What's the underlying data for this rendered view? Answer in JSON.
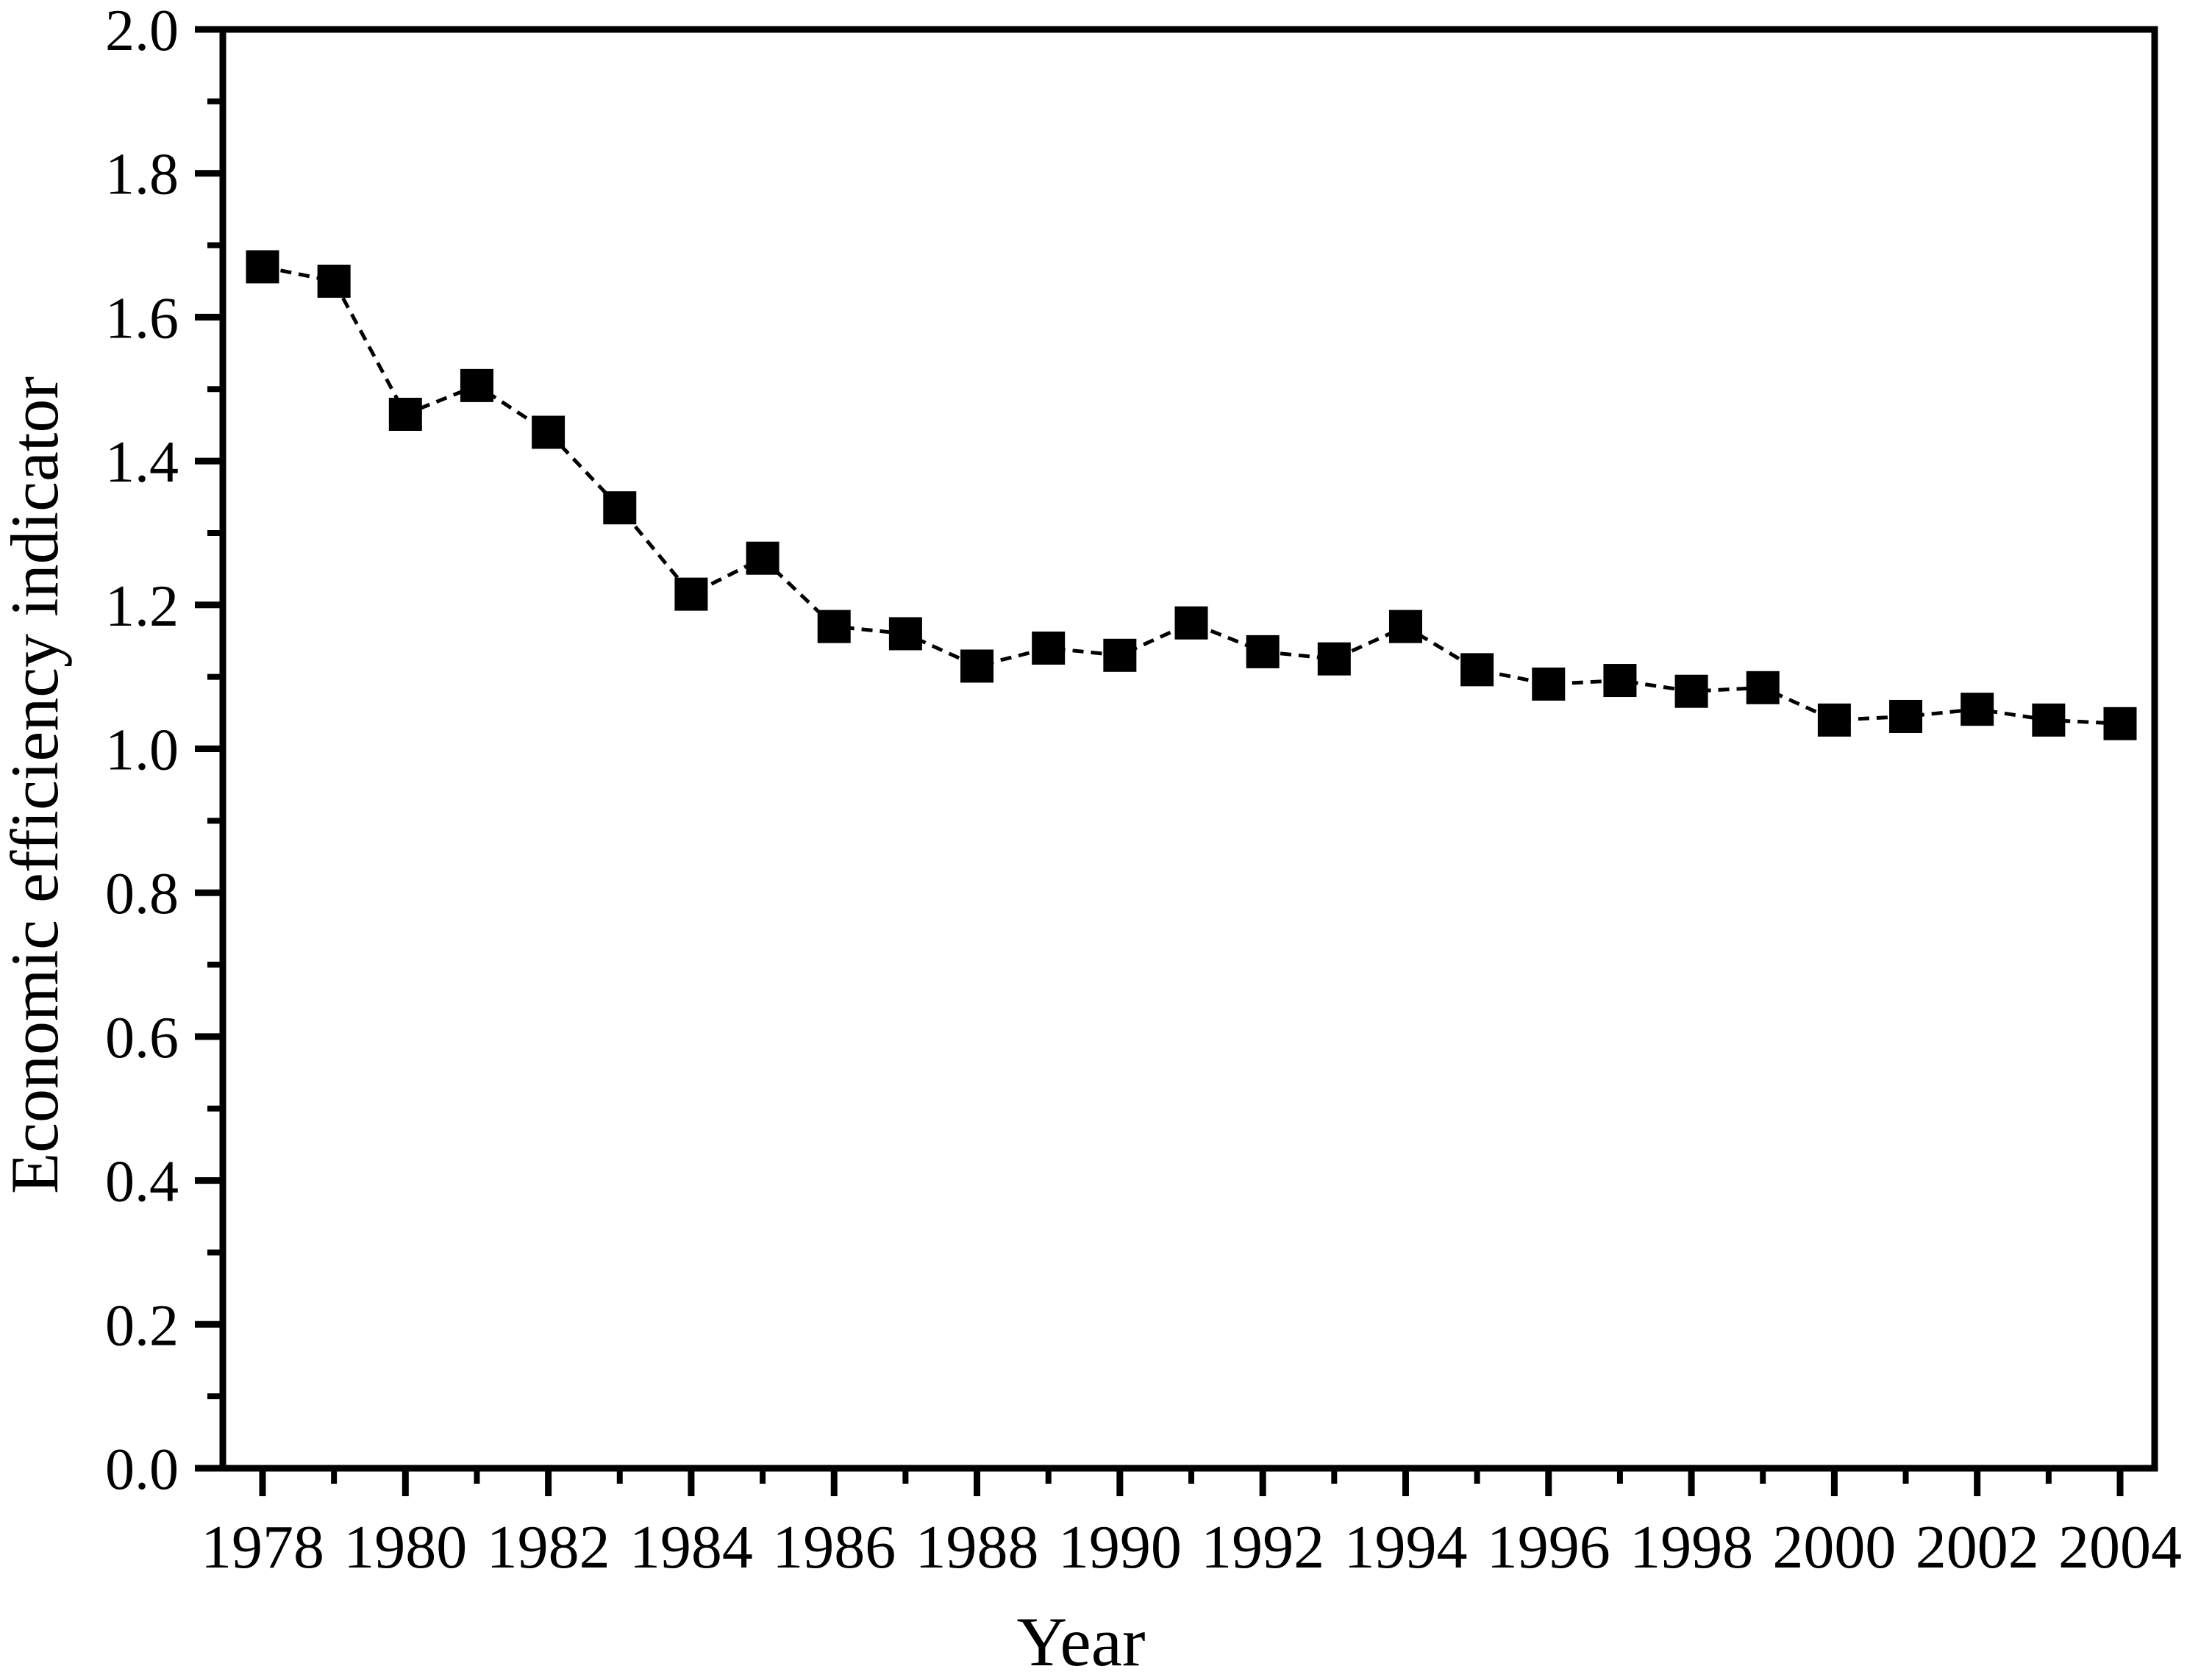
{
  "figure": {
    "background": "#ffffff",
    "foreground": "#000000"
  },
  "chart_data": {
    "type": "line",
    "title": "",
    "xlabel": "Year",
    "ylabel": "Economic efficiency indicator",
    "x": [
      1978,
      1979,
      1980,
      1981,
      1982,
      1983,
      1984,
      1985,
      1986,
      1987,
      1988,
      1989,
      1990,
      1991,
      1992,
      1993,
      1994,
      1995,
      1996,
      1997,
      1998,
      1999,
      2000,
      2001,
      2002,
      2003,
      2004
    ],
    "series": [
      {
        "name": "Economic efficiency indicator",
        "values": [
          1.67,
          1.65,
          1.465,
          1.505,
          1.44,
          1.335,
          1.215,
          1.265,
          1.17,
          1.16,
          1.115,
          1.14,
          1.13,
          1.175,
          1.135,
          1.125,
          1.17,
          1.11,
          1.09,
          1.095,
          1.08,
          1.085,
          1.04,
          1.045,
          1.055,
          1.04,
          1.035
        ]
      }
    ],
    "xlim": [
      1977.45,
      2004.5
    ],
    "ylim": [
      0.0,
      2.0
    ],
    "y_tick_labels": [
      "0.0",
      "0.2",
      "0.4",
      "0.6",
      "0.8",
      "1.0",
      "1.2",
      "1.4",
      "1.6",
      "1.8",
      "2.0"
    ],
    "y_major_tick_step": 0.2,
    "y_minor_tick_step": 0.1,
    "x_tick_labels": [
      "1978",
      "1980",
      "1982",
      "1984",
      "1986",
      "1988",
      "1990",
      "1992",
      "1994",
      "1996",
      "1998",
      "2000",
      "2002",
      "2004"
    ],
    "x_major_tick_step": 2,
    "x_minor_tick_step": 1,
    "grid": false,
    "legend_position": "none",
    "marker": "filled-square",
    "line_style": "dashed",
    "series_color": "#000000",
    "axis_color": "#000000"
  }
}
